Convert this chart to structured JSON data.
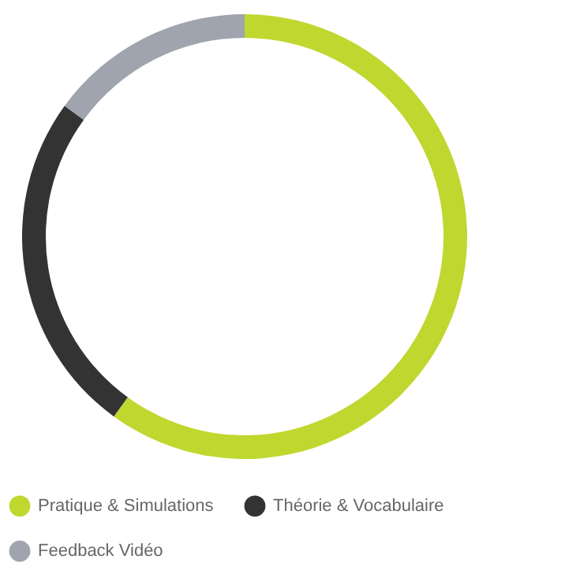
{
  "chart_data": {
    "type": "donut",
    "categories": [
      "Pratique & Simulations",
      "Théorie & Vocabulaire",
      "Feedback Vidéo"
    ],
    "values": [
      60,
      25,
      15
    ],
    "colors": [
      "#c0d72f",
      "#333333",
      "#a0a4ae"
    ],
    "legend": "bottom"
  }
}
